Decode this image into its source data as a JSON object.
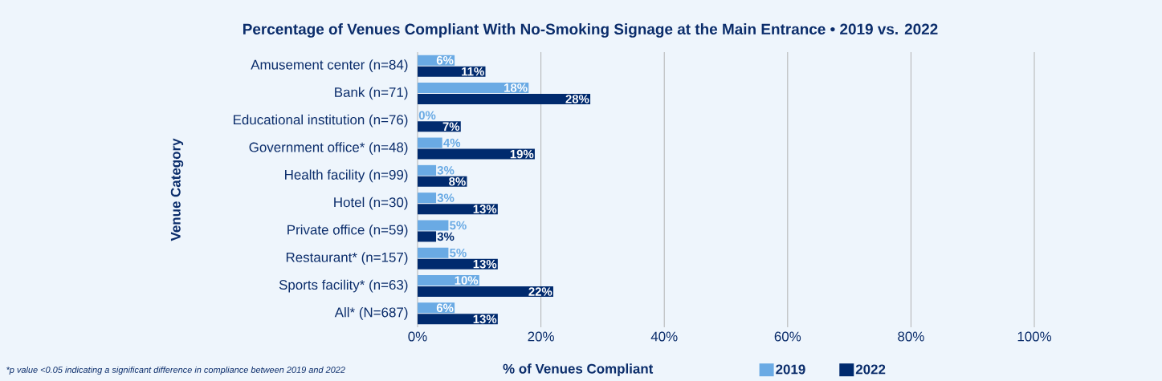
{
  "chart_data": {
    "type": "bar",
    "orientation": "horizontal",
    "title": "Percentage of Venues Compliant With No-Smoking Signage at the Main Entrance • 2019 vs. 2022",
    "xlabel": "% of Venues Compliant",
    "ylabel": "Venue Category",
    "categories": [
      "Amusement center (n=84)",
      "Bank (n=71)",
      "Educational institution (n=76)",
      "Government office* (n=48)",
      "Health facility (n=99)",
      "Hotel (n=30)",
      "Private office (n=59)",
      "Restaurant* (n=157)",
      "Sports facility* (n=63)",
      "All* (N=687)"
    ],
    "series": [
      {
        "name": "2019",
        "color": "#6aaae4",
        "values": [
          6,
          18,
          0,
          4,
          3,
          3,
          5,
          5,
          10,
          6
        ],
        "value_labels": [
          "6%",
          "18%",
          "0%",
          "4%",
          "3%",
          "3%",
          "5%",
          "5%",
          "10%",
          "6%"
        ]
      },
      {
        "name": "2022",
        "color": "#002a6e",
        "values": [
          11,
          28,
          7,
          19,
          8,
          13,
          3,
          13,
          22,
          13
        ],
        "value_labels": [
          "11%",
          "28%",
          "7%",
          "19%",
          "8%",
          "13%",
          "3%",
          "13%",
          "22%",
          "13%"
        ]
      }
    ],
    "xlim": [
      0,
      100
    ],
    "xticks": [
      {
        "value": 0,
        "label": "0%"
      },
      {
        "value": 20,
        "label": "20%"
      },
      {
        "value": 40,
        "label": "40%"
      },
      {
        "value": 60,
        "label": "60%"
      },
      {
        "value": 80,
        "label": "80%"
      },
      {
        "value": 100,
        "label": "100%"
      }
    ],
    "grid": "x",
    "legend": "bottom",
    "annotations": [
      "*p value <0.05 indicating a significant difference in compliance between 2019 and 2022"
    ]
  }
}
